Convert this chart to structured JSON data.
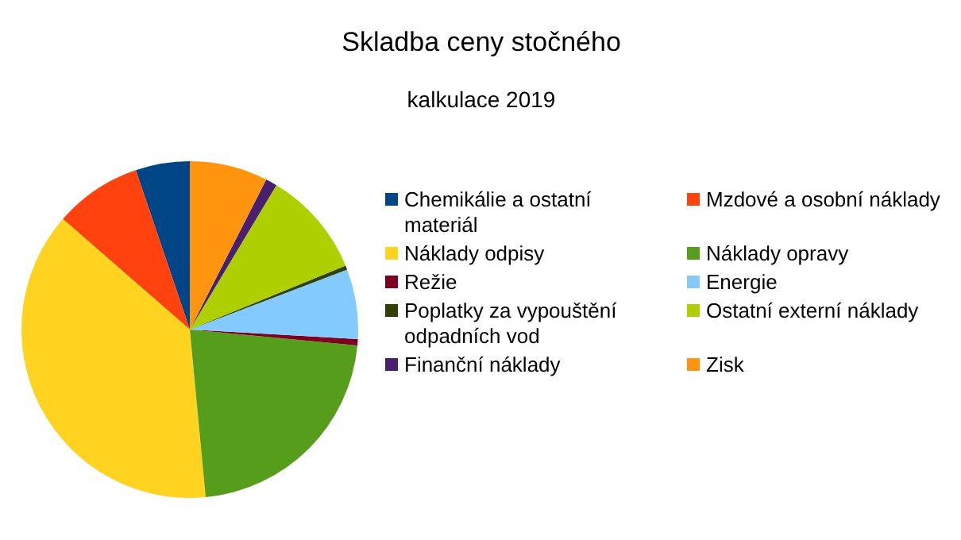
{
  "chart_data": {
    "type": "pie",
    "title": "Skladba ceny stočného",
    "subtitle": "kalkulace 2019",
    "legend": "right",
    "categories": [
      "Chemikálie a ostatní materiál",
      "Mzdové a osobní náklady",
      "Náklady odpisy",
      "Náklady opravy",
      "Režie",
      "Energie",
      "Poplatky za vypouštění odpadních vod",
      "Ostatní externí náklady",
      "Finanční náklady",
      "Zisk"
    ],
    "values": [
      5.2,
      8.4,
      37.9,
      22,
      0.6,
      6.7,
      0.4,
      10.2,
      1.1,
      7.5
    ],
    "colors": [
      "#004586",
      "#ff420e",
      "#ffd320",
      "#579d1c",
      "#7e0021",
      "#83caff",
      "#314004",
      "#aecf00",
      "#4b1f6f",
      "#ff950e"
    ]
  }
}
